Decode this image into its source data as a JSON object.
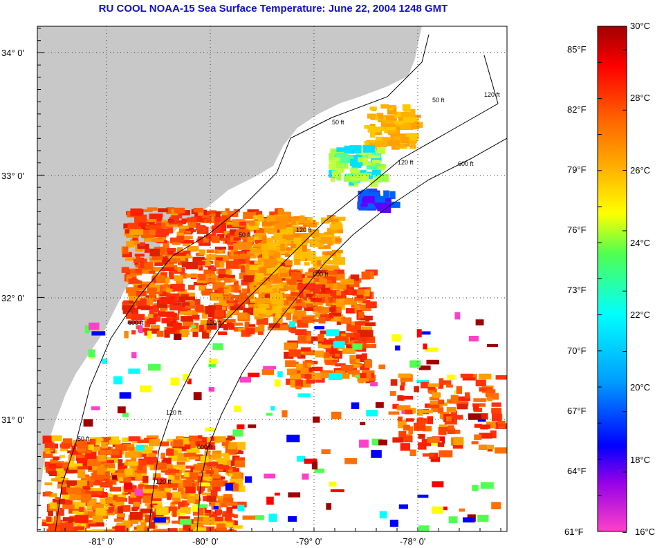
{
  "title": "RU COOL  NOAA-15  Sea Surface Temperature:  June 22, 2004 1248 GMT",
  "map": {
    "lat_ticks": [
      "34° 0'",
      "33° 0'",
      "32° 0'",
      "31° 0'"
    ],
    "lon_ticks": [
      "-81° 0'",
      "-80° 0'",
      "-79° 0'",
      "-78° 0'"
    ],
    "contour_labels": [
      "50 ft",
      "120 ft",
      "600 ft",
      "50 ft",
      "120 ft",
      "600 ft",
      "120 ft",
      "50 ft",
      "120 ft",
      "600 ft",
      "50 ft",
      "120 ft",
      "600 ft",
      "120 ft"
    ],
    "colors": {
      "land": "#c8c8c8",
      "ocean_nodata": "#ffffff"
    }
  },
  "colorbar": {
    "fahrenheit_labels": [
      "85°F",
      "82°F",
      "79°F",
      "76°F",
      "73°F",
      "70°F",
      "67°F",
      "64°F",
      "61°F"
    ],
    "celsius_labels": [
      "30°C",
      "28°C",
      "26°C",
      "24°C",
      "22°C",
      "20°C",
      "18°C",
      "16°C"
    ],
    "range_c": [
      16,
      30
    ],
    "stops": [
      "#ff40c8",
      "#9000e8",
      "#0000ff",
      "#00a0ff",
      "#00ffff",
      "#50ff50",
      "#ffff00",
      "#ffb000",
      "#ff6000",
      "#ff0000",
      "#a00000"
    ]
  }
}
